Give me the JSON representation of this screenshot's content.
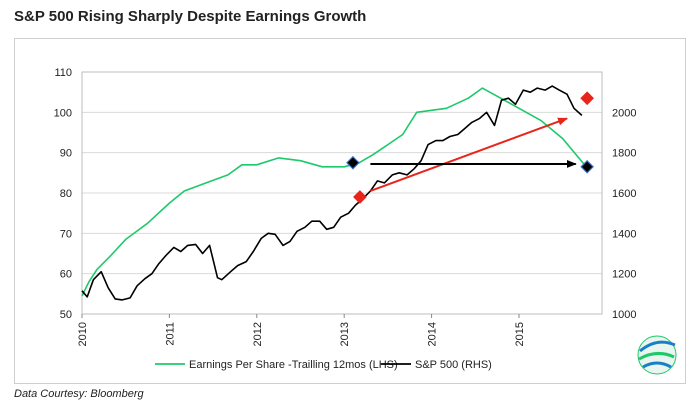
{
  "chart_data": {
    "type": "line",
    "title": "S&P 500 Rising Sharply Despite Earnings Growth",
    "credit": "Data Courtesy: Bloomberg",
    "x_ticks": [
      "2010",
      "2011",
      "2012",
      "2013",
      "2014",
      "2015"
    ],
    "x_range": [
      2010,
      2015.95
    ],
    "y_left": {
      "range": [
        50,
        110
      ],
      "ticks": [
        50,
        60,
        70,
        80,
        90,
        100,
        110
      ]
    },
    "y_right": {
      "range": [
        1000,
        2200
      ],
      "ticks": [
        1000,
        1200,
        1400,
        1600,
        1800,
        2000
      ]
    },
    "grid": true,
    "legend_position": "bottom",
    "series": [
      {
        "name": "Earnings Per Share -Trailling 12mos (LHS)",
        "axis": "left",
        "color": "#1ec96a",
        "x": [
          2010.0,
          2010.08,
          2010.17,
          2010.33,
          2010.5,
          2010.75,
          2011.0,
          2011.17,
          2011.42,
          2011.67,
          2011.83,
          2012.0,
          2012.25,
          2012.5,
          2012.75,
          2013.0,
          2013.17,
          2013.33,
          2013.5,
          2013.67,
          2013.83,
          2014.0,
          2014.17,
          2014.42,
          2014.58,
          2014.75,
          2015.0,
          2015.25,
          2015.5,
          2015.75
        ],
        "values": [
          54.5,
          58,
          61,
          64.5,
          68.5,
          72.5,
          77.5,
          80.5,
          82.5,
          84.5,
          87,
          87,
          88.7,
          88,
          86.5,
          86.5,
          87.5,
          89.5,
          92,
          94.5,
          100,
          100.5,
          101,
          103.5,
          106,
          104,
          101,
          98,
          93.5,
          87
        ]
      },
      {
        "name": "S&P 500 (RHS)",
        "axis": "right",
        "color": "#000000",
        "x": [
          2010.0,
          2010.06,
          2010.13,
          2010.22,
          2010.3,
          2010.38,
          2010.46,
          2010.55,
          2010.63,
          2010.72,
          2010.8,
          2010.88,
          2010.96,
          2011.05,
          2011.13,
          2011.21,
          2011.3,
          2011.38,
          2011.46,
          2011.55,
          2011.6,
          2011.7,
          2011.78,
          2011.88,
          2011.96,
          2012.05,
          2012.13,
          2012.21,
          2012.3,
          2012.38,
          2012.46,
          2012.55,
          2012.63,
          2012.72,
          2012.8,
          2012.88,
          2012.96,
          2013.05,
          2013.13,
          2013.21,
          2013.3,
          2013.38,
          2013.46,
          2013.55,
          2013.63,
          2013.72,
          2013.8,
          2013.88,
          2013.96,
          2014.05,
          2014.13,
          2014.21,
          2014.3,
          2014.38,
          2014.46,
          2014.55,
          2014.63,
          2014.72,
          2014.8,
          2014.88,
          2014.96,
          2015.05,
          2015.13,
          2015.21,
          2015.3,
          2015.38,
          2015.46,
          2015.55,
          2015.63,
          2015.72
        ],
        "values": [
          1115,
          1085,
          1170,
          1210,
          1130,
          1075,
          1070,
          1080,
          1140,
          1175,
          1200,
          1250,
          1290,
          1330,
          1310,
          1340,
          1345,
          1300,
          1340,
          1180,
          1170,
          1210,
          1240,
          1260,
          1310,
          1375,
          1400,
          1395,
          1340,
          1360,
          1410,
          1430,
          1460,
          1460,
          1420,
          1430,
          1480,
          1500,
          1540,
          1570,
          1610,
          1660,
          1650,
          1690,
          1700,
          1690,
          1720,
          1760,
          1840,
          1860,
          1860,
          1880,
          1890,
          1920,
          1950,
          1970,
          2000,
          1935,
          2060,
          2070,
          2040,
          2110,
          2100,
          2120,
          2110,
          2130,
          2110,
          2090,
          2020,
          1985
        ]
      }
    ],
    "markers": [
      {
        "axis": "left",
        "x": 2013.1,
        "y": 87.5,
        "color": "#000000",
        "edge": "#3a6fc4"
      },
      {
        "axis": "left",
        "x": 2013.18,
        "y": 79,
        "color": "#e8251b",
        "edge": "#e8251b"
      },
      {
        "axis": "left",
        "x": 2015.78,
        "y": 103.5,
        "color": "#e8251b",
        "edge": "#e8251b"
      },
      {
        "axis": "left",
        "x": 2015.78,
        "y": 86.5,
        "color": "#000000",
        "edge": "#3a6fc4"
      }
    ],
    "arrows": [
      {
        "axis": "left",
        "from": [
          2013.3,
          80.5
        ],
        "to": [
          2015.55,
          98.5
        ],
        "color": "#e8251b"
      },
      {
        "axis": "left",
        "from": [
          2013.3,
          87.2
        ],
        "to": [
          2015.65,
          87.2
        ],
        "color": "#000000"
      }
    ]
  }
}
